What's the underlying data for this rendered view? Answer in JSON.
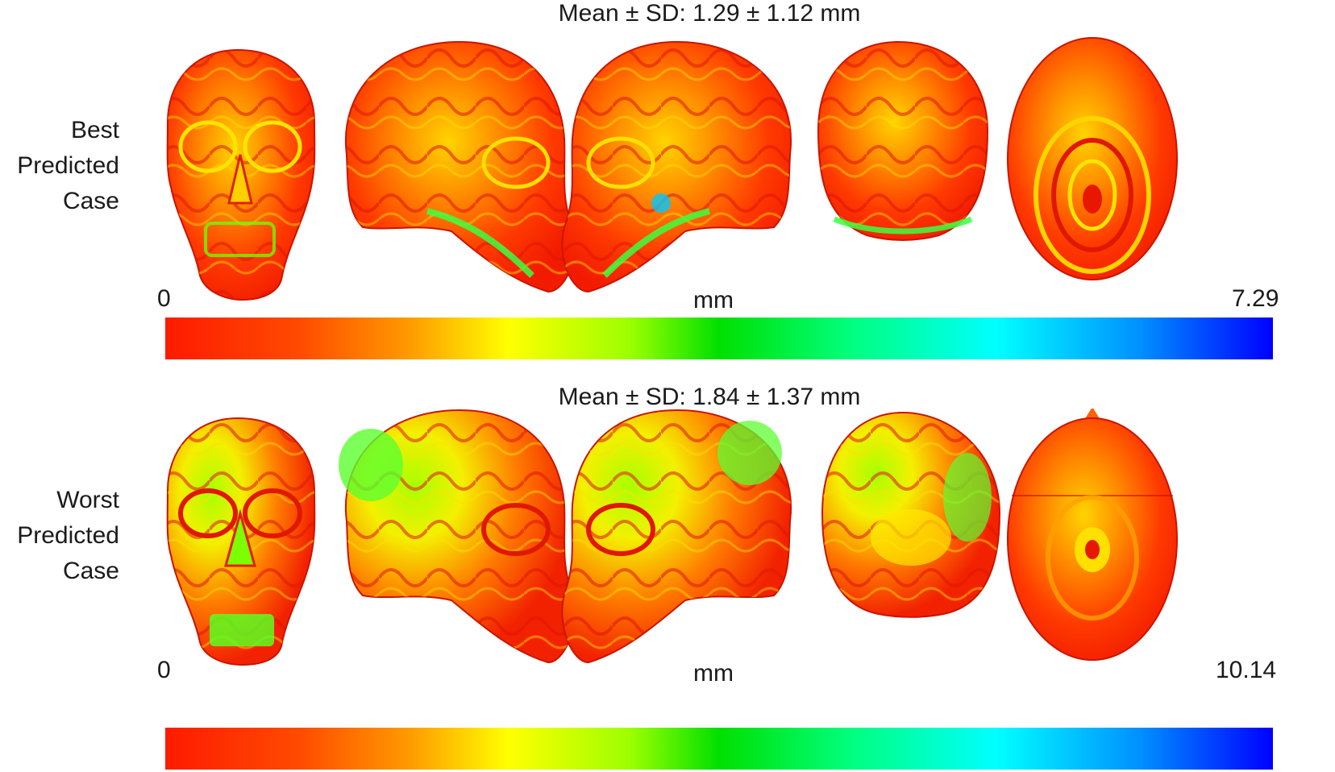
{
  "colormap": [
    "#ff1a00",
    "#ff9a00",
    "#ffff00",
    "#00e000",
    "#00ffff",
    "#0000ff"
  ],
  "best": {
    "mean_sd": "Mean ± SD: 1.29 ± 1.12 mm",
    "label_line1": "Best",
    "label_line2": "Predicted",
    "label_line3": "Case",
    "scale_min": "0",
    "scale_max": "7.29",
    "unit": "mm",
    "views": [
      "frontal view",
      "left lateral view",
      "right lateral view",
      "posterior view",
      "superior view"
    ]
  },
  "worst": {
    "mean_sd": "Mean ± SD: 1.84 ± 1.37 mm",
    "label_line1": "Worst",
    "label_line2": "Predicted",
    "label_line3": "Case",
    "scale_min": "0",
    "scale_max": "10.14",
    "unit": "mm",
    "views": [
      "frontal view",
      "left lateral view",
      "right lateral view",
      "posterior view",
      "superior view"
    ]
  }
}
